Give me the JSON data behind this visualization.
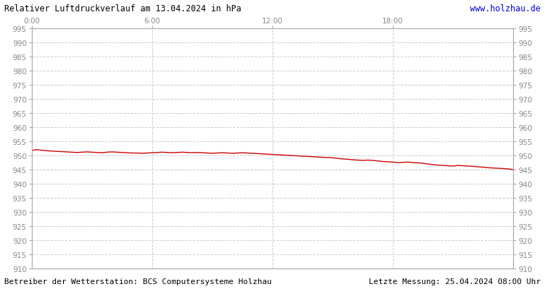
{
  "title": "Relativer Luftdruckverlauf am 13.04.2024 in hPa",
  "url_text": "www.holzhau.de",
  "bottom_left": "Betreiber der Wetterstation: BCS Computersysteme Holzhau",
  "bottom_right": "Letzte Messung: 25.04.2024 08:00 Uhr",
  "ymin": 910,
  "ymax": 995,
  "ystep": 5,
  "x_tick_labels": [
    "0:00",
    "6:00",
    "12:00",
    "18:00"
  ],
  "x_tick_positions": [
    0,
    6,
    12,
    18
  ],
  "line_color": "#cc0000",
  "background_color": "#ffffff",
  "plot_bg_color": "#ffffff",
  "grid_color": "#cccccc",
  "tick_color": "#aaaaaa",
  "label_color": "#888888",
  "title_color": "#000000",
  "url_color": "#0000cc",
  "spine_color": "#aaaaaa",
  "pressure_data": [
    [
      0.0,
      951.8
    ],
    [
      0.25,
      952.1
    ],
    [
      0.5,
      951.9
    ],
    [
      0.75,
      951.7
    ],
    [
      1.0,
      951.6
    ],
    [
      1.25,
      951.5
    ],
    [
      1.5,
      951.4
    ],
    [
      1.75,
      951.3
    ],
    [
      2.0,
      951.2
    ],
    [
      2.25,
      951.1
    ],
    [
      2.5,
      951.2
    ],
    [
      2.75,
      951.3
    ],
    [
      3.0,
      951.2
    ],
    [
      3.25,
      951.1
    ],
    [
      3.5,
      951.0
    ],
    [
      3.75,
      951.2
    ],
    [
      4.0,
      951.3
    ],
    [
      4.25,
      951.2
    ],
    [
      4.5,
      951.1
    ],
    [
      4.75,
      951.0
    ],
    [
      5.0,
      950.9
    ],
    [
      5.25,
      950.9
    ],
    [
      5.5,
      950.8
    ],
    [
      5.75,
      950.9
    ],
    [
      6.0,
      951.0
    ],
    [
      6.25,
      951.1
    ],
    [
      6.5,
      951.2
    ],
    [
      6.75,
      951.1
    ],
    [
      7.0,
      951.0
    ],
    [
      7.25,
      951.1
    ],
    [
      7.5,
      951.2
    ],
    [
      7.75,
      951.1
    ],
    [
      8.0,
      951.0
    ],
    [
      8.25,
      951.1
    ],
    [
      8.5,
      951.0
    ],
    [
      8.75,
      950.9
    ],
    [
      9.0,
      950.8
    ],
    [
      9.25,
      950.9
    ],
    [
      9.5,
      951.0
    ],
    [
      9.75,
      950.9
    ],
    [
      10.0,
      950.8
    ],
    [
      10.25,
      950.9
    ],
    [
      10.5,
      951.0
    ],
    [
      10.75,
      950.9
    ],
    [
      11.0,
      950.8
    ],
    [
      11.25,
      950.7
    ],
    [
      11.5,
      950.6
    ],
    [
      11.75,
      950.5
    ],
    [
      12.0,
      950.4
    ],
    [
      12.25,
      950.3
    ],
    [
      12.5,
      950.2
    ],
    [
      12.75,
      950.1
    ],
    [
      13.0,
      950.0
    ],
    [
      13.25,
      949.9
    ],
    [
      13.5,
      949.8
    ],
    [
      13.75,
      949.7
    ],
    [
      14.0,
      949.6
    ],
    [
      14.25,
      949.5
    ],
    [
      14.5,
      949.4
    ],
    [
      14.75,
      949.3
    ],
    [
      15.0,
      949.2
    ],
    [
      15.25,
      949.0
    ],
    [
      15.5,
      948.8
    ],
    [
      15.75,
      948.7
    ],
    [
      16.0,
      948.5
    ],
    [
      16.25,
      948.4
    ],
    [
      16.5,
      948.3
    ],
    [
      16.75,
      948.4
    ],
    [
      17.0,
      948.3
    ],
    [
      17.25,
      948.1
    ],
    [
      17.5,
      947.9
    ],
    [
      17.75,
      947.8
    ],
    [
      18.0,
      947.7
    ],
    [
      18.25,
      947.5
    ],
    [
      18.5,
      947.6
    ],
    [
      18.75,
      947.7
    ],
    [
      19.0,
      947.5
    ],
    [
      19.25,
      947.4
    ],
    [
      19.5,
      947.3
    ],
    [
      19.75,
      947.0
    ],
    [
      20.0,
      946.8
    ],
    [
      20.25,
      946.6
    ],
    [
      20.5,
      946.5
    ],
    [
      20.75,
      946.4
    ],
    [
      21.0,
      946.3
    ],
    [
      21.25,
      946.5
    ],
    [
      21.5,
      946.4
    ],
    [
      21.75,
      946.3
    ],
    [
      22.0,
      946.2
    ],
    [
      22.25,
      946.0
    ],
    [
      22.5,
      945.9
    ],
    [
      22.75,
      945.7
    ],
    [
      23.0,
      945.6
    ],
    [
      23.25,
      945.5
    ],
    [
      23.5,
      945.4
    ],
    [
      23.75,
      945.3
    ],
    [
      24.0,
      945.0
    ]
  ]
}
